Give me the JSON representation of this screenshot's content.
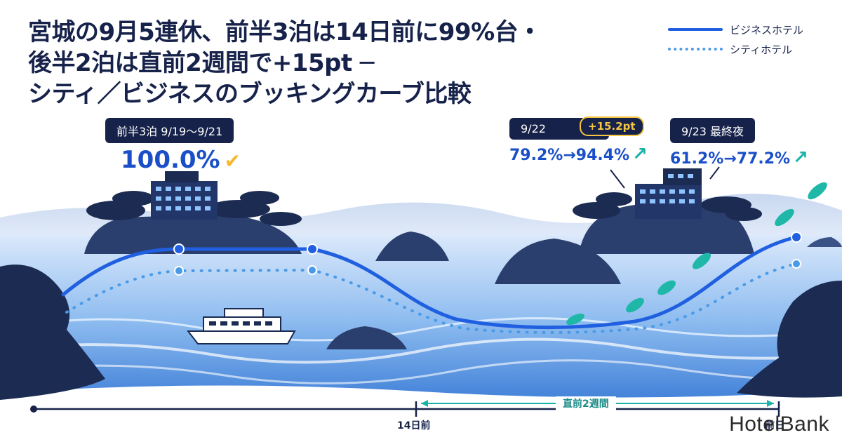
{
  "title_lines": [
    "宮城の9月5連休、前半3泊は14日前に99%台・",
    "後半2泊は直前2週間で+15pt ─",
    "シティ／ビジネスのブッキングカーブ比較"
  ],
  "legend": {
    "business": "ビジネスホテル",
    "city": "シティホテル"
  },
  "callouts": {
    "first_half": {
      "label": "前半3泊 9/19〜9/21",
      "value": "100.0%"
    },
    "sep22": {
      "label": "9/22",
      "delta": "+15.2pt",
      "value": "79.2%→94.4%"
    },
    "sep23": {
      "label": "9/23 最終夜",
      "value": "61.2%→77.2%"
    }
  },
  "axis": {
    "tick_14": "14日前",
    "tick_end": "前日",
    "window": "直前2週間"
  },
  "watermark": "HotelBank",
  "colors": {
    "business": "#1f5fe0",
    "city": "#4a9ae8",
    "accent_gold": "#f5c542",
    "accent_teal": "#1bb3a8",
    "navy": "#16224a"
  },
  "chart_data": {
    "type": "line",
    "x_labels": [
      "14日前",
      "前日"
    ],
    "series": [
      {
        "name": "ビジネスホテル",
        "style": "solid"
      },
      {
        "name": "シティホテル",
        "style": "dotted"
      }
    ],
    "annotations": [
      {
        "label": "前半3泊 9/19〜9/21",
        "value": 100.0
      },
      {
        "label": "9/22",
        "from": 79.2,
        "to": 94.4,
        "delta": 15.2
      },
      {
        "label": "9/23 最終夜",
        "from": 61.2,
        "to": 77.2
      }
    ]
  }
}
